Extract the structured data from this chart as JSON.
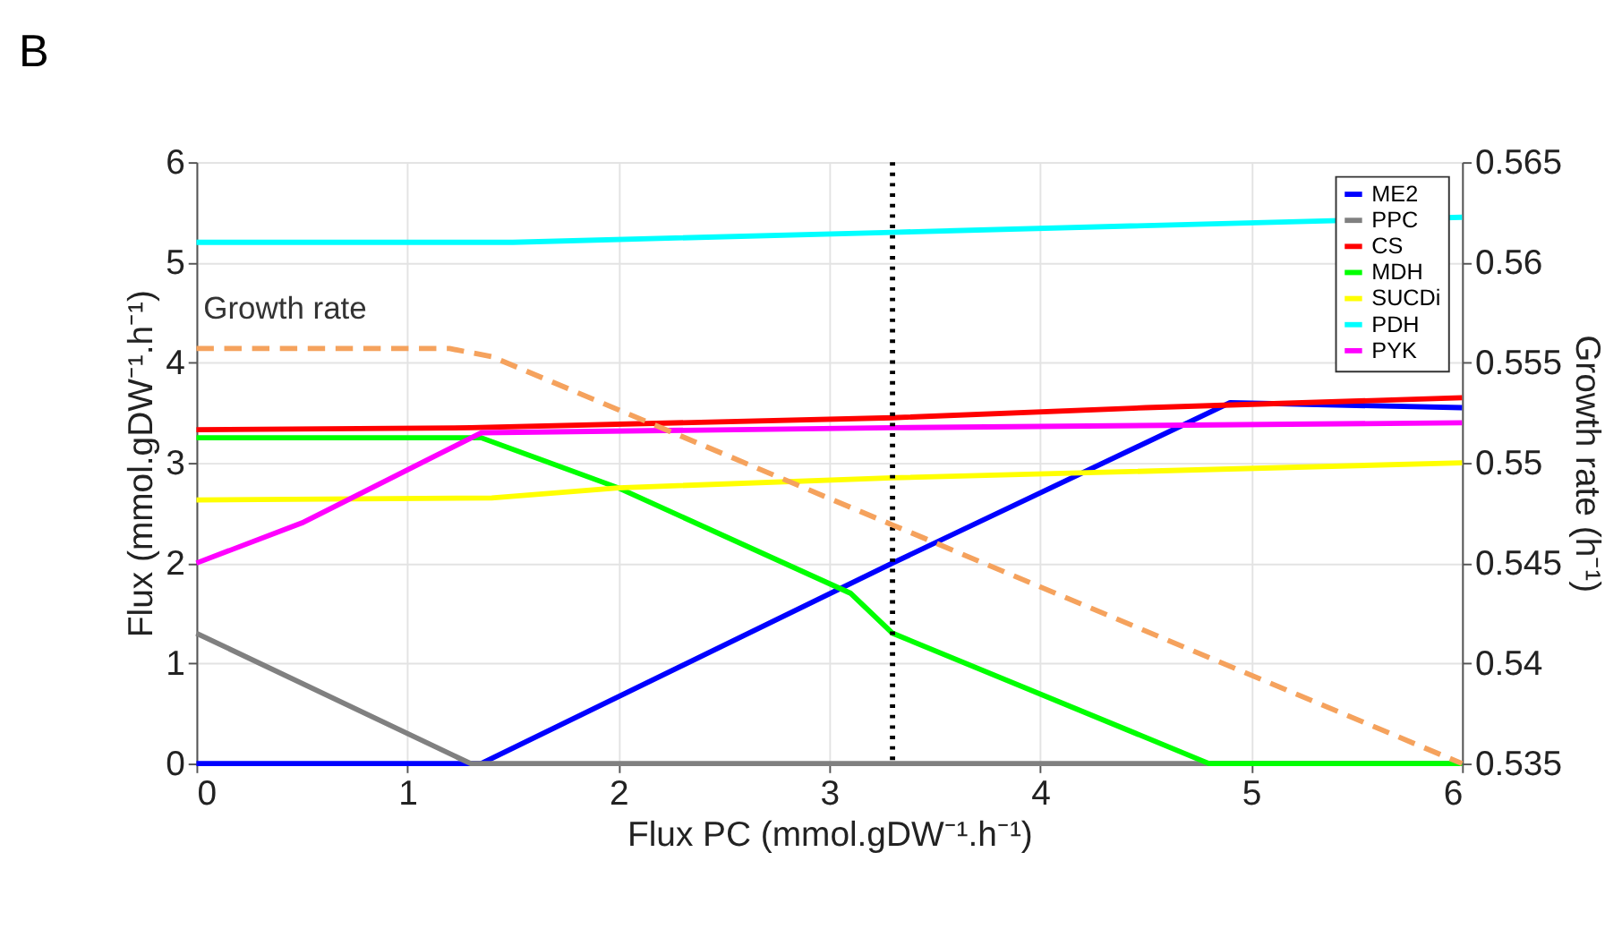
{
  "chart_data": {
    "type": "line",
    "title": "B",
    "xlabel": "Flux PC (mmol.gDW⁻¹.h⁻¹)",
    "ylabel": "Flux (mmol.gDW⁻¹.h⁻¹)",
    "y2label": "Growth rate (h⁻¹)",
    "xlim": [
      0,
      6
    ],
    "xticks": [
      0,
      1,
      2,
      3,
      4,
      5,
      6
    ],
    "ylim": [
      0,
      6
    ],
    "yticks": [
      0,
      1,
      2,
      3,
      4,
      5,
      6
    ],
    "y2lim": [
      0.535,
      0.565
    ],
    "y2ticks": [
      0.535,
      0.54,
      0.545,
      0.55,
      0.555,
      0.56,
      0.565
    ],
    "grid": true,
    "legend": "top right",
    "marker": "none",
    "series": [
      {
        "name": "ME2",
        "color": "#0000ff",
        "x": [
          0,
          1.35,
          3.3,
          4.9,
          6
        ],
        "values": [
          0,
          0,
          2.0,
          3.6,
          3.55
        ]
      },
      {
        "name": "PPC",
        "color": "#808080",
        "x": [
          0,
          1.3,
          6
        ],
        "values": [
          1.3,
          0,
          0
        ]
      },
      {
        "name": "CS",
        "color": "#ff0000",
        "x": [
          0,
          1.3,
          3.3,
          4.5,
          6
        ],
        "values": [
          3.33,
          3.35,
          3.45,
          3.55,
          3.65
        ]
      },
      {
        "name": "MDH",
        "color": "#00ff00",
        "x": [
          0,
          1.35,
          2,
          3.1,
          3.3,
          4.8,
          6
        ],
        "values": [
          3.25,
          3.25,
          2.75,
          1.7,
          1.3,
          0,
          0
        ]
      },
      {
        "name": "SUCDi",
        "color": "#ffff00",
        "x": [
          0,
          1.4,
          2,
          3.3,
          6
        ],
        "values": [
          2.63,
          2.65,
          2.75,
          2.85,
          3.0
        ]
      },
      {
        "name": "PDH",
        "color": "#00ffff",
        "x": [
          0,
          1.5,
          3.3,
          6
        ],
        "values": [
          5.2,
          5.2,
          5.3,
          5.45
        ]
      },
      {
        "name": "PYK",
        "color": "#ff00ff",
        "x": [
          0,
          0.5,
          1.35,
          3.3,
          6
        ],
        "values": [
          2.0,
          2.4,
          3.3,
          3.35,
          3.4
        ]
      },
      {
        "name": "Growth rate",
        "color": "#f5a25d",
        "axis": "y2",
        "line_style": "dashed",
        "x": [
          0,
          1.2,
          1.4,
          3.3,
          6
        ],
        "values": [
          0.5557,
          0.5557,
          0.5553,
          0.5469,
          0.535
        ]
      }
    ],
    "ref_lines": [
      {
        "axis": "x",
        "value": 3.3,
        "color": "#000000",
        "line_style": "dotted"
      }
    ]
  }
}
